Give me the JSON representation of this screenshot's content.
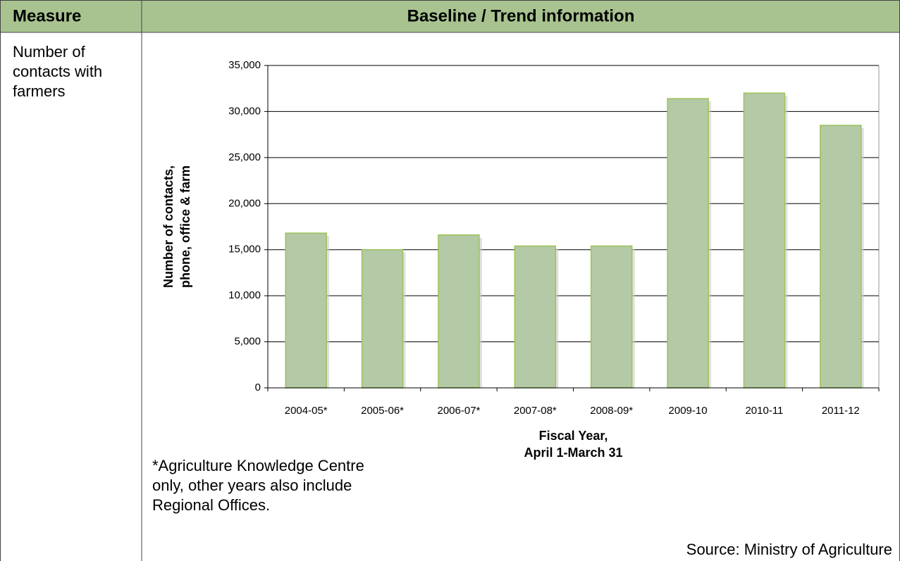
{
  "table": {
    "headers": [
      "Measure",
      "Baseline / Trend information"
    ],
    "measure": [
      "Number of",
      "contacts with",
      "farmers"
    ],
    "footnote": [
      "*Agriculture Knowledge Centre",
      "only, other years also include",
      "Regional Offices."
    ],
    "source": "Source: Ministry of Agriculture"
  },
  "chart_data": {
    "type": "bar",
    "categories": [
      "2004-05*",
      "2005-06*",
      "2006-07*",
      "2007-08*",
      "2008-09*",
      "2009-10",
      "2010-11",
      "2011-12"
    ],
    "values": [
      16800,
      15000,
      16600,
      15400,
      15400,
      31400,
      32000,
      28500
    ],
    "color": "#b4c9a5",
    "edge_color": "#9cc35a",
    "y_label": [
      "Number of contacts,",
      "phone, office & farm"
    ],
    "x_label": [
      "Fiscal Year,",
      "April 1-March 31"
    ],
    "ylim": [
      0,
      35000
    ],
    "yticks": [
      0,
      {
        "value": 5000,
        "label": "5,000"
      },
      {
        "value": 10000,
        "label": "10,000"
      },
      {
        "value": 15000,
        "label": "15,000"
      },
      {
        "value": 20000,
        "label": "20,000"
      },
      {
        "value": 25000,
        "label": "25,000"
      },
      {
        "value": 30000,
        "label": "30,000"
      },
      {
        "value": 35000,
        "label": "35,000"
      }
    ],
    "grid": true
  }
}
